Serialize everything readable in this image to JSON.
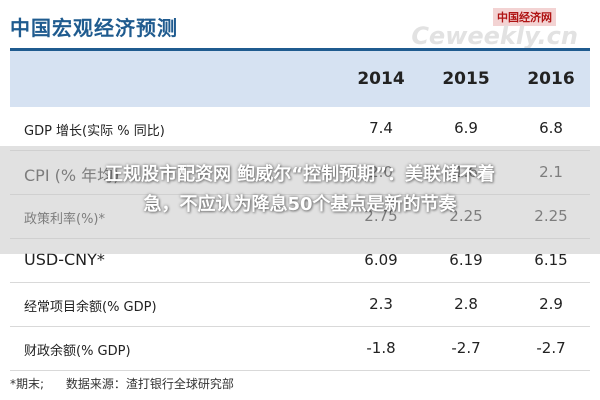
{
  "title": "中国宏观经济预测",
  "watermark": {
    "cn": "中国经济网",
    "en": "Ceweekly.cn"
  },
  "table": {
    "years": [
      "2014",
      "2015",
      "2016"
    ],
    "rows": [
      {
        "label": "GDP 增长(实际 % 同比)",
        "values": [
          "7.4",
          "6.9",
          "6.8"
        ]
      },
      {
        "label": "CPI (% 年均)",
        "values": [
          "2.0",
          "1.6",
          "2.1"
        ]
      },
      {
        "label": "政策利率(%)*",
        "values": [
          "2.75",
          "2.25",
          "2.25"
        ]
      },
      {
        "label": "USD-CNY*",
        "values": [
          "6.09",
          "6.19",
          "6.15"
        ]
      },
      {
        "label": "经常项目余额(% GDP)",
        "values": [
          "2.3",
          "2.8",
          "2.9"
        ]
      },
      {
        "label": "财政余额(% GDP)",
        "values": [
          "-1.8",
          "-2.7",
          "-2.7"
        ]
      }
    ]
  },
  "footnote": {
    "note": "*期末;",
    "source": "数据来源：渣打银行全球研究部"
  },
  "headline": {
    "line1": "正规股市配资网 鲍威尔“控制预期”：美联储不着",
    "line2": "急，不应认为降息50个基点是新的节奏"
  }
}
